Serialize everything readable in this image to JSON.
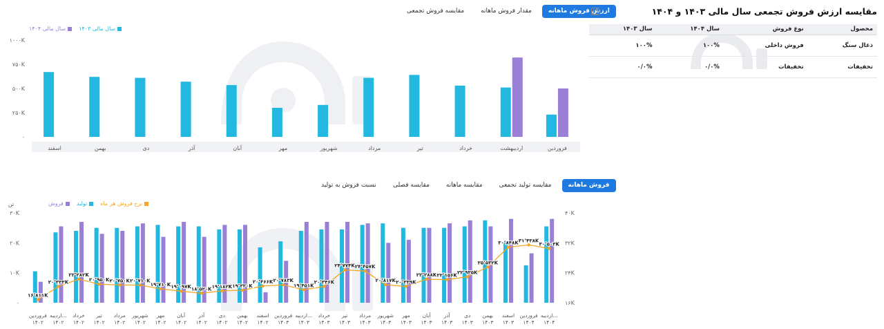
{
  "top_section": {
    "title": "مقایسه ارزش فروش تجمعی سال مالی ۱۴۰۳ و ۱۴۰۴",
    "tabs": [
      {
        "label": "ارزش فروش ماهانه",
        "active": true
      },
      {
        "label": "مقدار فروش ماهانه",
        "active": false
      },
      {
        "label": "مقایسه فروش تجمعی",
        "active": false
      }
    ],
    "legend": [
      {
        "label": "سال مالی ۱۴۰۴",
        "color": "#9a7fd6"
      },
      {
        "label": "سال مالی ۱۴۰۳",
        "color": "#22b8e0"
      }
    ]
  },
  "table": {
    "headers": [
      "محصول",
      "نوع فروش",
      "سال ۱۴۰۴",
      "سال ۱۴۰۳"
    ],
    "rows": [
      [
        "ذغال سنگ",
        "فروش داخلی",
        "۱۰۰%",
        "۱۰۰%"
      ],
      [
        "تخفیفات",
        "تخفیفات",
        "۰/۰%",
        "۰/۰%"
      ]
    ]
  },
  "bottom_section": {
    "tabs": [
      {
        "label": "فروش ماهانه",
        "active": true
      },
      {
        "label": "مقایسه تولید تجمعی",
        "active": false
      },
      {
        "label": "مقایسه ماهانه",
        "active": false
      },
      {
        "label": "مقایسه فصلی",
        "active": false
      },
      {
        "label": "نسبت فروش به تولید",
        "active": false
      }
    ],
    "legend": [
      {
        "label": "فروش",
        "color": "#9a7fd6"
      },
      {
        "label": "تولید",
        "color": "#22b8e0"
      },
      {
        "label": "نرخ فروش هر ماه",
        "color": "#f5a623"
      }
    ]
  },
  "chart_data": [
    {
      "type": "bar",
      "categories": [
        "فروردین",
        "اردیبهشت",
        "خرداد",
        "تیر",
        "مرداد",
        "شهریور",
        "مهر",
        "آبان",
        "آذر",
        "دی",
        "بهمن",
        "اسفند"
      ],
      "series": [
        {
          "name": "سال مالی ۱۴۰۳",
          "color": "#22b8e0",
          "values": [
            230,
            510,
            530,
            640,
            610,
            330,
            300,
            535,
            570,
            610,
            620,
            670
          ]
        },
        {
          "name": "سال مالی ۱۴۰۴",
          "color": "#9a7fd6",
          "values": [
            500,
            820,
            null,
            null,
            null,
            null,
            null,
            null,
            null,
            null,
            null,
            null
          ]
        }
      ],
      "ylim": [
        0,
        1000
      ],
      "yticks": [
        "۰",
        "۲۵۰K",
        "۵۰۰K",
        "۷۵۰K",
        "۱۰۰۰K"
      ],
      "ytick_values": [
        0,
        250,
        500,
        750,
        1000
      ],
      "grid": false,
      "legend_position": "top-left"
    },
    {
      "type": "bar",
      "categories": [
        [
          "فروردین",
          "۱۴۰۲"
        ],
        [
          "اردیبه...",
          "۱۴۰۲"
        ],
        [
          "خرداد",
          "۱۴۰۲"
        ],
        [
          "تیر",
          "۱۴۰۲"
        ],
        [
          "مرداد",
          "۱۴۰۲"
        ],
        [
          "شهریور",
          "۱۴۰۲"
        ],
        [
          "مهر",
          "۱۴۰۲"
        ],
        [
          "آبان",
          "۱۴۰۲"
        ],
        [
          "آذر",
          "۱۴۰۲"
        ],
        [
          "دی",
          "۱۴۰۲"
        ],
        [
          "بهمن",
          "۱۴۰۲"
        ],
        [
          "اسفند",
          "۱۴۰۲"
        ],
        [
          "فروردین",
          "۱۴۰۳"
        ],
        [
          "اردیبه...",
          "۱۴۰۳"
        ],
        [
          "خرداد",
          "۱۴۰۳"
        ],
        [
          "تیر",
          "۱۴۰۳"
        ],
        [
          "مرداد",
          "۱۴۰۳"
        ],
        [
          "شهریور",
          "۱۴۰۳"
        ],
        [
          "مهر",
          "۱۴۰۳"
        ],
        [
          "آبان",
          "۱۴۰۳"
        ],
        [
          "آذر",
          "۱۴۰۳"
        ],
        [
          "دی",
          "۱۴۰۳"
        ],
        [
          "بهمن",
          "۱۴۰۳"
        ],
        [
          "اسفند",
          "۱۴۰۳"
        ],
        [
          "فروردین",
          "۱۴۰۴"
        ],
        [
          "اردیبه...",
          "۱۴۰۴"
        ]
      ],
      "y_left_unit": "تن",
      "y_left_ticks": [
        "۰",
        "۱۰K",
        "۲۰K",
        "۳۰K"
      ],
      "y_left_tick_values": [
        0,
        10,
        20,
        30
      ],
      "y_left_lim": [
        0,
        30
      ],
      "y_right_ticks": [
        "۱۶K",
        "۲۴K",
        "۳۲K",
        "۴۰K"
      ],
      "y_right_tick_values": [
        16,
        24,
        32,
        40
      ],
      "y_right_lim": [
        16,
        40
      ],
      "series": [
        {
          "name": "تولید",
          "color": "#22b8e0",
          "axis": "left",
          "values": [
            10.5,
            23.5,
            24,
            25,
            25,
            25.5,
            26,
            25.5,
            25.5,
            24.5,
            24.5,
            18.5,
            20.5,
            24,
            24.5,
            24.5,
            26,
            26.5,
            25,
            25,
            25,
            25.5,
            27.5,
            20.5,
            12.5,
            25.5
          ]
        },
        {
          "name": "فروش",
          "color": "#9a7fd6",
          "axis": "left",
          "values": [
            7,
            25.5,
            27,
            23,
            24,
            26.5,
            22,
            27,
            22,
            26,
            26,
            3.5,
            14,
            27,
            27,
            27,
            26.5,
            20,
            21,
            25,
            26.5,
            27.5,
            25.5,
            28,
            16.5,
            28
          ]
        },
        {
          "name": "نرخ فروش هر ماه",
          "color": "#f5a623",
          "axis": "right",
          "values": [
            16.811,
            20.333,
            22.282,
            20.95,
            20.75,
            20.71,
            19.71,
            19.097,
            18.52,
            19.182,
            19.33,
            20.466,
            20.783,
            19.451,
            20.346,
            24.774,
            24.457,
            20.817,
            20.339,
            22.288,
            22.156,
            22.935,
            25.532,
            30.848,
            31.438,
            30.503
          ],
          "labels": [
            "۱۶٬۸۱۱K",
            "۲۰٬۳۳۳K",
            "۲۲٬۲۸۲K",
            "۲۰٬۹۵۰K",
            "۲۰٬۷۵۰K",
            "۲۰٬۷۱۰K",
            "۱۹٬۷۱۰K",
            "۱۹٬۰۹۷K",
            "۱۸٬۵۲۰K",
            "۱۹٬۱۸۲K",
            "۱۹٬۳۳۰K",
            "۲۰٬۴۶۶K",
            "۲۰٬۷۸۳K",
            "۱۹٬۴۵۱K",
            "۲۰٬۳۴۶K",
            "۲۴٬۷۷۴K",
            "۲۴٬۴۵۷K",
            "۲۰٬۸۱۷K",
            "۲۰٬۳۳۹K",
            "۲۲٬۲۸۸K",
            "۲۲٬۱۵۶K",
            "۲۲٬۹۳۵K",
            "۲۵٬۵۳۲K",
            "۳۰٬۸۴۸K",
            "۳۱٬۴۳۸K",
            "۳۰٬۵۰۳K"
          ]
        }
      ],
      "grid": false,
      "legend_position": "top-left"
    }
  ]
}
